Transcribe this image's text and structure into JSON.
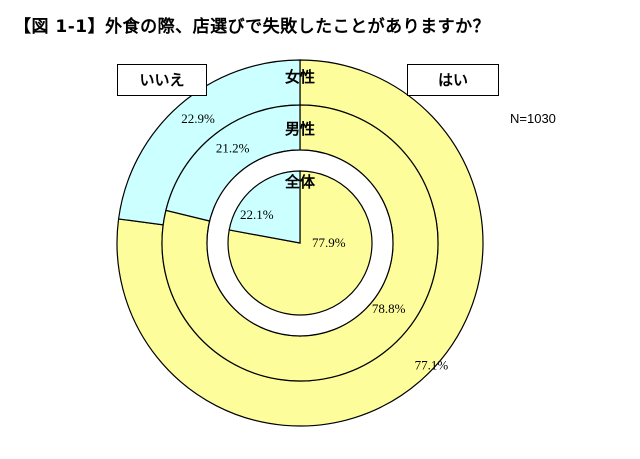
{
  "title": "【図 1-1】外食の際、店選びで失敗したことがありますか？",
  "n_label": "N=1030",
  "colors": {
    "yes": "#fdfd9c",
    "no": "#ccffff",
    "edge": "#000000",
    "gap": "#ffffff"
  },
  "chart_data": {
    "type": "pie",
    "subtype": "concentric-donut",
    "categories": [
      "はい",
      "いいえ"
    ],
    "legend": [
      "いいえ",
      "はい"
    ],
    "rings": [
      {
        "name": "女性",
        "values": [
          77.1,
          22.9
        ],
        "labels": [
          "77.1%",
          "22.9%"
        ]
      },
      {
        "name": "男性",
        "values": [
          78.8,
          21.2
        ],
        "labels": [
          "78.8%",
          "21.2%"
        ]
      },
      {
        "name": "全体",
        "values": [
          77.9,
          22.1
        ],
        "labels": [
          "77.9%",
          "22.1%"
        ]
      }
    ],
    "note": "N=1030"
  }
}
